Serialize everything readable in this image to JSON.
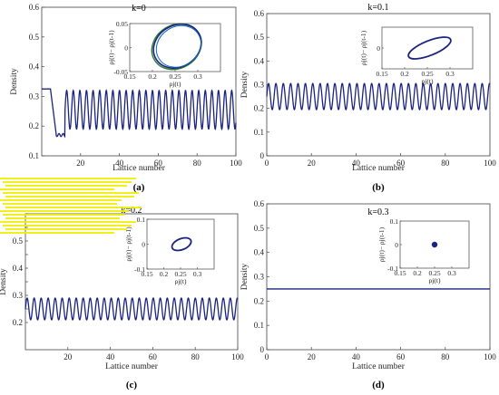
{
  "colors": {
    "line": "#1a237e",
    "inset_green": "#2e7d32",
    "axis": "#444444",
    "stripe": "#f0f000"
  },
  "chart_data": [
    {
      "id": "a",
      "type": "line",
      "title": "k=0",
      "panel_label": "(a)",
      "xlabel": "Lattice number",
      "ylabel": "Density",
      "xlim": [
        0,
        100
      ],
      "ylim": [
        0.1,
        0.6
      ],
      "xticks": [
        20,
        40,
        60,
        80,
        100
      ],
      "yticks": [
        0.1,
        0.2,
        0.3,
        0.4,
        0.5,
        0.6
      ],
      "series": [
        {
          "x": [
            0,
            4,
            6,
            7,
            12,
            100
          ],
          "pattern": "piecewise"
        }
      ],
      "inset": {
        "type": "scatter-loop",
        "xlabel": "ρj(t)",
        "ylabel": "ρj(t)− ρj(t-1)",
        "xlim": [
          0.15,
          0.35
        ],
        "ylim": [
          -0.05,
          0.05
        ],
        "xticks": [
          0.15,
          0.2,
          0.25,
          0.3
        ],
        "yticks": [
          -0.05,
          0,
          0.05
        ],
        "ytick_labels": [
          "-0.05",
          "0",
          "0.05"
        ],
        "center": [
          0.255,
          0.003
        ],
        "rx": 0.055,
        "ry": 0.045
      }
    },
    {
      "id": "b",
      "type": "line",
      "title": "k=0.1",
      "panel_label": "(b)",
      "xlabel": "Lattice number",
      "ylabel": "Density",
      "xlim": [
        0,
        100
      ],
      "ylim": [
        0,
        0.6
      ],
      "xticks": [
        0,
        20,
        40,
        60,
        80,
        100
      ],
      "yticks": [
        0,
        0.1,
        0.2,
        0.3,
        0.4,
        0.5,
        0.6
      ],
      "series": [
        {
          "mean": 0.25,
          "amplitude": 0.055,
          "period": 3.3
        }
      ],
      "inset": {
        "type": "scatter-loop",
        "xlabel": "ρj(t)",
        "ylabel": "ρj(t)− ρj(t-1)",
        "xlim": [
          0.15,
          0.35
        ],
        "ylim": [
          -0.1,
          0.1
        ],
        "xticks": [
          0.15,
          0.2,
          0.25,
          0.3
        ],
        "yticks": [
          0
        ],
        "ytick_labels": [
          "0"
        ],
        "center": [
          0.255,
          0.0
        ],
        "rx": 0.05,
        "ry": 0.035
      }
    },
    {
      "id": "c",
      "type": "line",
      "title": "k=0.2",
      "panel_label": "(c)",
      "xlabel": "Lattice number",
      "ylabel": "Density",
      "xlim": [
        0,
        100
      ],
      "ylim": [
        0.1,
        0.6
      ],
      "xticks": [
        20,
        40,
        60,
        80,
        100
      ],
      "yticks": [
        0.2,
        0.25,
        0.3,
        0.35,
        0.4,
        0.45,
        0.5,
        0.55,
        0.6
      ],
      "ytick_labels": [
        "0.2",
        "",
        "0.3",
        "",
        "0.4",
        "",
        "0.5",
        "",
        ""
      ],
      "series": [
        {
          "mean": 0.25,
          "amplitude": 0.04,
          "period": 3.3
        }
      ],
      "inset": {
        "type": "scatter-loop",
        "xlabel": "ρj(t)",
        "ylabel": "ρj(t)− ρj(t-1)",
        "xlim": [
          0.15,
          0.35
        ],
        "ylim": [
          -0.1,
          0.1
        ],
        "xticks": [
          0.15,
          0.2,
          0.25,
          0.3
        ],
        "yticks": [
          -0.1,
          0,
          0.1
        ],
        "ytick_labels": [
          "-0.1",
          "0",
          "0.1"
        ],
        "center": [
          0.253,
          0.0
        ],
        "rx": 0.03,
        "ry": 0.022
      }
    },
    {
      "id": "d",
      "type": "line",
      "title": "k=0.3",
      "panel_label": "(d)",
      "xlabel": "Lattice number",
      "ylabel": "Density",
      "xlim": [
        0,
        100
      ],
      "ylim": [
        0,
        0.6
      ],
      "xticks": [
        0,
        20,
        40,
        60,
        80,
        100
      ],
      "yticks": [
        0,
        0.1,
        0.2,
        0.3,
        0.4,
        0.5,
        0.6
      ],
      "series": [
        {
          "mean": 0.25,
          "amplitude": 0,
          "period": 0
        }
      ],
      "inset": {
        "type": "point",
        "xlabel": "ρj(t)",
        "ylabel": "ρj(t)− ρj(t-1)",
        "xlim": [
          0.15,
          0.35
        ],
        "ylim": [
          -0.1,
          0.1
        ],
        "xticks": [
          0.15,
          0.2,
          0.25,
          0.3
        ],
        "yticks": [
          -0.1,
          0,
          0.1
        ],
        "ytick_labels": [
          "-0.1",
          "0",
          "0.1"
        ],
        "center": [
          0.25,
          0.0
        ]
      }
    }
  ]
}
